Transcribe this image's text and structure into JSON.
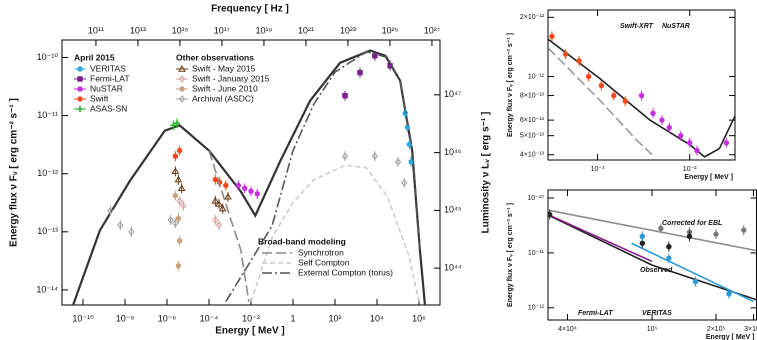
{
  "chart_data": [
    {
      "type": "line",
      "xlog": true,
      "ylog": true,
      "xlabel": "Energy [ MeV ]",
      "ylabel": "Energy flux ν Fᵥ [ erg cm⁻² s⁻¹ ]",
      "x2label": "Frequency [ Hz ]",
      "y2label": "Luminosity ν Lᵥ [ erg s⁻¹ ]",
      "xlim": [
        1e-11,
        10000000.0
      ],
      "ylim": [
        5.5e-15,
        2e-10
      ],
      "x2lim": [
        2420000000.0,
        2.42e+27
      ],
      "y2lim": [
        2.3e+43,
        8.9e+47
      ],
      "xticks": [
        {
          "value": 1e-10,
          "label": "10⁻¹⁰"
        },
        {
          "value": 1e-08,
          "label": "10⁻⁸"
        },
        {
          "value": 1e-06,
          "label": "10⁻⁶"
        },
        {
          "value": 0.0001,
          "label": "10⁻⁴"
        },
        {
          "value": 0.01,
          "label": "10⁻²"
        },
        1,
        {
          "value": 100,
          "label": "10²"
        },
        {
          "value": 10000,
          "label": "10⁴"
        },
        {
          "value": 1000000,
          "label": "10⁶"
        }
      ],
      "yticks": [
        {
          "value": 1e-14,
          "label": "10⁻¹⁴"
        },
        {
          "value": 1e-13,
          "label": "10⁻¹³"
        },
        {
          "value": 1e-12,
          "label": "10⁻¹²"
        },
        {
          "value": 1e-11,
          "label": "10⁻¹¹"
        },
        {
          "value": 1e-10,
          "label": "10⁻¹⁰"
        }
      ],
      "x2ticks": [
        {
          "value": 100000000000.0,
          "label": "10¹¹"
        },
        {
          "value": 10000000000000.0,
          "label": "10¹³"
        },
        {
          "value": 1000000000000000.0,
          "label": "10¹⁵"
        },
        {
          "value": 1e+17,
          "label": "10¹⁷"
        },
        {
          "value": 1e+19,
          "label": "10¹⁹"
        },
        {
          "value": 1e+21,
          "label": "10²¹"
        },
        {
          "value": 1e+23,
          "label": "10²³"
        },
        {
          "value": 1e+25,
          "label": "10²⁵"
        },
        {
          "value": 1e+27,
          "label": "10²⁷"
        }
      ],
      "y2ticks": [
        {
          "value": 1e+44,
          "label": "10⁴⁴"
        },
        {
          "value": 1e+45,
          "label": "10⁴⁵"
        },
        {
          "value": 1e+46,
          "label": "10⁴⁶"
        },
        {
          "value": 1e+47,
          "label": "10⁴⁷"
        }
      ],
      "series": [
        {
          "color": "#333333",
          "style": "solid",
          "x": [
            3.2e-11,
            6.3e-10,
            1.74e-08,
            7.9e-07,
            4e-06,
            0.0001,
            0.0032,
            0.016,
            0.25,
            6.5,
            174,
            4700,
            25000,
            126000.0,
            470000.0,
            1100000.0,
            1950000.0
          ],
          "values": [
            5.2e-15,
            1.05e-13,
            7.6e-13,
            5.5e-12,
            6.8e-12,
            2.5e-12,
            5e-13,
            1.9e-13,
            1.66e-12,
            1.8e-11,
            8.1e-11,
            1.32e-10,
            1.07e-10,
            4e-11,
            2.5e-12,
            5e-14,
            5.2e-15
          ]
        }
      ],
      "groups": [
        {
          "title": "April 2015",
          "series": [
            {
              "name": "VERITAS",
              "color": "#29a8e0",
              "marker": "circle",
              "x": [
                220000.0,
                280000.0,
                350000.0,
                420000.0
              ],
              "values": [
                1.1e-11,
                6.3e-12,
                3.2e-12,
                1.6e-12
              ]
            },
            {
              "name": "Fermi-LAT",
              "color": "#7a1f8c",
              "marker": "square",
              "x": [
                300,
                1550,
                7900,
                42000
              ],
              "values": [
                2.2e-11,
                5.5e-11,
                1.07e-10,
                7.2e-11
              ]
            },
            {
              "name": "NuSTAR",
              "color": "#c82ee0",
              "marker": "circle",
              "x": [
                0.0025,
                0.005,
                0.01,
                0.02
              ],
              "values": [
                6.3e-13,
                5.6e-13,
                5e-13,
                4.5e-13
              ]
            },
            {
              "name": "Swift",
              "color": "#f04a1a",
              "marker": "circle",
              "x": [
                2.5e-06,
                4e-06,
                0.0002,
                0.00032,
                0.00063
              ],
              "values": [
                2e-12,
                2.5e-12,
                7.9e-13,
                7.1e-13,
                6.3e-13
              ]
            },
            {
              "name": "ASAS-SN",
              "color": "#2db52d",
              "marker": "cross",
              "x": [
                2e-06,
                3e-06
              ],
              "values": [
                6.8e-12,
                7.4e-12
              ]
            }
          ]
        },
        {
          "title": "Other observations",
          "series": [
            {
              "name": "Swift - May 2015",
              "color": "#6b3a12",
              "marker": "triangle",
              "x": [
                2.5e-06,
                3.5e-06,
                5e-06,
                0.0002,
                0.0003,
                0.00045,
                0.0008
              ],
              "values": [
                1.1e-12,
                7.9e-13,
                5.6e-13,
                3.4e-13,
                3e-13,
                2.5e-13,
                4e-13
              ]
            },
            {
              "name": "Swift - January 2015",
              "color": "#d9a0a0",
              "marker": "diamond",
              "x": [
                4e-06,
                6e-06,
                0.0002,
                0.0003
              ],
              "values": [
                3.4e-13,
                2.8e-13,
                1.6e-13,
                1.3e-13
              ]
            },
            {
              "name": "Swift - June 2010",
              "color": "#c9a27a",
              "marker": "circle",
              "x": [
                2.5e-06,
                3.5e-06,
                4e-06,
                3.5e-06
              ],
              "values": [
                4.2e-13,
                1.7e-13,
                7e-14,
                2.6e-14
              ]
            },
            {
              "name": "Archival (ASDC)",
              "color": "#a0a0a0",
              "marker": "diamond",
              "x": [
                2e-09,
                6e-09,
                2e-08,
                1.5e-06,
                2.5e-06,
                300,
                7900,
                100000.0,
                200000.0
              ],
              "values": [
                2.3e-13,
                1.3e-13,
                1e-13,
                1.6e-13,
                1.4e-13,
                2e-12,
                2e-12,
                1.6e-12,
                7e-13
              ]
            }
          ]
        },
        {
          "title": "Broad-band modeling",
          "series": [
            {
              "name": "Synchrotron",
              "color": "#8c8c8c",
              "style": "longdash",
              "x": [
                0.0001,
                0.001,
                0.0032,
                0.0079
              ],
              "values": [
                2.5e-12,
                1.8e-13,
                5e-14,
                6.3e-15
              ]
            },
            {
              "name": "Self Compton",
              "color": "#cccccc",
              "style": "dashed",
              "x": [
                0.01,
                0.1,
                1,
                10,
                316,
                3162,
                31600,
                320000.0,
                1000000.0
              ],
              "values": [
                6.3e-15,
                7.9e-14,
                3.2e-13,
                7.9e-13,
                1.4e-12,
                1.26e-12,
                4e-13,
                4e-14,
                6.3e-15
              ]
            },
            {
              "name": "External Compton (torus)",
              "color": "#555555",
              "style": "dashdot",
              "x": [
                0.00063,
                0.01,
                0.1,
                1,
                10,
                100,
                3162,
                31600,
                126000.0,
                500000.0,
                1100000.0
              ],
              "values": [
                6.3e-15,
                3.2e-14,
                1.26e-13,
                2.5e-12,
                1.6e-11,
                5.6e-11,
                1.26e-10,
                1e-10,
                4e-11,
                2.5e-12,
                5e-14
              ]
            }
          ]
        }
      ]
    },
    {
      "type": "line",
      "xlog": true,
      "ylog": true,
      "xlabel": "Energy [ MeV ]",
      "ylabel": "Energy flux ν Fᵥ [ erg cm⁻² s⁻¹ ]",
      "xlim": [
        0.00029,
        0.031
      ],
      "ylim": [
        3.76e-13,
        2.18e-12
      ],
      "xticks": [
        {
          "value": 0.001,
          "label": "10⁻³"
        },
        {
          "value": 0.01,
          "label": "10⁻²"
        }
      ],
      "yticks": [
        {
          "value": 4e-13,
          "label": "4×10⁻¹³"
        },
        {
          "value": 5e-13,
          "label": "5×10⁻¹³"
        },
        {
          "value": 6e-13,
          "label": "6×10⁻¹³"
        },
        {
          "value": 8e-13,
          "label": "8×10⁻¹³"
        },
        {
          "value": 1e-12,
          "label": "10⁻¹²"
        },
        {
          "value": 2e-12,
          "label": "2×10⁻¹²"
        }
      ],
      "series": [
        {
          "color": "#222222",
          "style": "solid",
          "x": [
            0.00029,
            0.00105,
            0.0037,
            0.01,
            0.0145,
            0.021,
            0.031
          ],
          "values": [
            1.55e-12,
            9.8e-13,
            6e-13,
            4.5e-13,
            3.9e-13,
            4.3e-13,
            6.3e-13
          ]
        },
        {
          "color": "#999999",
          "style": "longdash",
          "x": [
            0.00029,
            0.00105,
            0.0026,
            0.0039
          ],
          "values": [
            1.4e-12,
            7.6e-13,
            4.8e-13,
            4e-13
          ]
        },
        {
          "name": "Swift-XRT",
          "color": "#f04a1a",
          "marker": "circle",
          "x": [
            0.00032,
            0.00045,
            0.00063,
            0.0008,
            0.0011,
            0.0015,
            0.002
          ],
          "values": [
            1.6e-12,
            1.3e-12,
            1.2e-12,
            1e-12,
            9e-13,
            8e-13,
            7.5e-13
          ]
        },
        {
          "name": "NuSTAR",
          "color": "#c82ee0",
          "marker": "circle",
          "x": [
            0.003,
            0.004,
            0.005,
            0.006,
            0.008,
            0.01,
            0.012,
            0.025
          ],
          "values": [
            8e-13,
            6.5e-13,
            6e-13,
            5.5e-13,
            5e-13,
            4.6e-13,
            4.2e-13,
            4.6e-13
          ]
        }
      ]
    },
    {
      "type": "line",
      "xlog": true,
      "ylog": true,
      "xlabel": "Energy [ MeV ]",
      "ylabel": "Energy flux ν Fᵥ [ erg cm⁻² s⁻¹ ]",
      "xlim": [
        32400.0,
        310000.0
      ],
      "ylim": [
        6e-13,
        1.4e-10
      ],
      "xticks": [
        {
          "value": 40000,
          "label": "4×10⁴"
        },
        {
          "value": 100000,
          "label": "10⁵"
        },
        {
          "value": 200000,
          "label": "2×10⁵"
        },
        {
          "value": 300000,
          "label": "3×10⁵"
        }
      ],
      "yticks": [
        {
          "value": 1e-12,
          "label": "10⁻¹²"
        },
        {
          "value": 1e-11,
          "label": "10⁻¹¹"
        },
        {
          "value": 1e-10,
          "label": "10⁻¹⁰"
        }
      ],
      "series": [
        {
          "name": "Corrected for EBL",
          "color": "#8a8a8a",
          "style": "solid",
          "x": [
            32400.0,
            310000.0
          ],
          "values": [
            6e-11,
            1.1e-11
          ]
        },
        {
          "name": "Observed",
          "color": "#222222",
          "style": "solid",
          "x": [
            32400.0,
            100000.0,
            310000.0
          ],
          "values": [
            4.9e-11,
            6e-12,
            1.4e-12
          ]
        },
        {
          "name": "Fermi-LAT",
          "color": "#8b1a8b",
          "style": "solid",
          "x": [
            32400.0,
            100000.0
          ],
          "values": [
            5e-11,
            7e-12
          ]
        },
        {
          "name": "VERITAS",
          "color": "#2a9ad8",
          "style": "solid",
          "x": [
            80000.0,
            300000.0
          ],
          "values": [
            1.5e-11,
            1.3e-12
          ]
        },
        {
          "color": "#777777",
          "marker": "circle",
          "x": [
            110000.0,
            150000.0,
            200000.0,
            270000.0
          ],
          "values": [
            2.8e-11,
            2.4e-11,
            2.2e-11,
            2.6e-11
          ]
        },
        {
          "color": "#222222",
          "marker": "circle",
          "x": [
            33000.0,
            90000.0,
            120000.0,
            150000.0
          ],
          "values": [
            5e-11,
            1.5e-11,
            1.3e-11,
            2e-11
          ]
        },
        {
          "color": "#2a9ad8",
          "marker": "circle",
          "x": [
            90000.0,
            120000.0,
            160000.0,
            230000.0
          ],
          "values": [
            2e-11,
            8e-12,
            3e-12,
            1.8e-12
          ]
        }
      ]
    }
  ]
}
